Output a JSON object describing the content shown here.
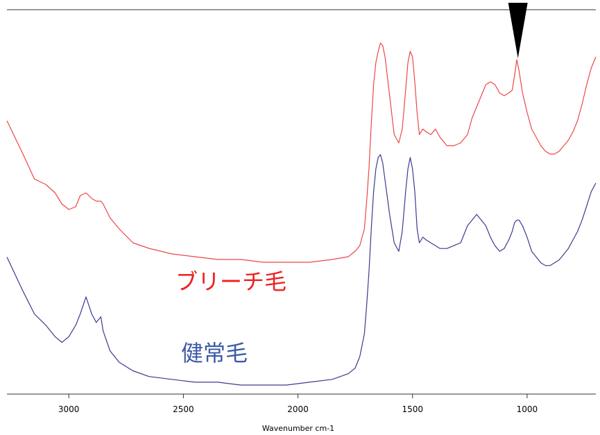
{
  "chart_data": {
    "type": "line",
    "title": "",
    "xlabel": "Wavenumber cm-1",
    "ylabel": "",
    "x_reversed": true,
    "xlim": [
      3270,
      700
    ],
    "ylim": [
      0,
      1
    ],
    "x_ticks": [
      3000,
      2500,
      2000,
      1500,
      1000
    ],
    "grid": false,
    "legend": "inline labels",
    "series": [
      {
        "name": "ブリーチ毛",
        "color": "#ef4545",
        "x": [
          3270,
          3200,
          3150,
          3100,
          3060,
          3030,
          3000,
          2970,
          2950,
          2925,
          2900,
          2880,
          2860,
          2850,
          2820,
          2780,
          2720,
          2650,
          2550,
          2450,
          2350,
          2250,
          2150,
          2050,
          1950,
          1850,
          1780,
          1750,
          1730,
          1710,
          1700,
          1690,
          1680,
          1670,
          1660,
          1650,
          1640,
          1630,
          1620,
          1600,
          1580,
          1560,
          1545,
          1530,
          1520,
          1510,
          1500,
          1490,
          1480,
          1470,
          1455,
          1440,
          1420,
          1400,
          1380,
          1350,
          1320,
          1290,
          1260,
          1240,
          1220,
          1200,
          1180,
          1160,
          1140,
          1120,
          1100,
          1080,
          1065,
          1055,
          1045,
          1035,
          1020,
          1000,
          980,
          960,
          940,
          920,
          900,
          880,
          860,
          840,
          820,
          800,
          780,
          760,
          740,
          720,
          700
        ],
        "values": [
          0.69,
          0.57,
          0.48,
          0.46,
          0.43,
          0.39,
          0.37,
          0.38,
          0.42,
          0.43,
          0.41,
          0.4,
          0.4,
          0.39,
          0.34,
          0.3,
          0.25,
          0.23,
          0.21,
          0.2,
          0.19,
          0.19,
          0.18,
          0.18,
          0.18,
          0.19,
          0.2,
          0.22,
          0.24,
          0.3,
          0.4,
          0.52,
          0.68,
          0.82,
          0.9,
          0.94,
          0.97,
          0.96,
          0.92,
          0.78,
          0.64,
          0.61,
          0.66,
          0.8,
          0.9,
          0.94,
          0.92,
          0.83,
          0.72,
          0.64,
          0.66,
          0.65,
          0.64,
          0.66,
          0.63,
          0.6,
          0.6,
          0.61,
          0.64,
          0.7,
          0.74,
          0.78,
          0.82,
          0.83,
          0.82,
          0.79,
          0.78,
          0.79,
          0.8,
          0.85,
          0.91,
          0.87,
          0.79,
          0.72,
          0.66,
          0.63,
          0.6,
          0.58,
          0.57,
          0.57,
          0.58,
          0.6,
          0.62,
          0.65,
          0.69,
          0.75,
          0.82,
          0.88,
          0.92
        ]
      },
      {
        "name": "健常毛",
        "color": "#3b3a8e",
        "x": [
          3270,
          3200,
          3150,
          3100,
          3060,
          3030,
          3000,
          2970,
          2950,
          2925,
          2900,
          2880,
          2860,
          2850,
          2820,
          2780,
          2720,
          2650,
          2550,
          2450,
          2350,
          2250,
          2150,
          2050,
          1950,
          1850,
          1780,
          1750,
          1730,
          1710,
          1700,
          1690,
          1680,
          1670,
          1660,
          1650,
          1640,
          1630,
          1620,
          1600,
          1580,
          1560,
          1545,
          1530,
          1520,
          1510,
          1500,
          1490,
          1480,
          1470,
          1455,
          1440,
          1420,
          1400,
          1380,
          1350,
          1320,
          1290,
          1260,
          1240,
          1220,
          1200,
          1180,
          1160,
          1140,
          1120,
          1100,
          1080,
          1065,
          1055,
          1045,
          1035,
          1020,
          1000,
          980,
          960,
          940,
          920,
          900,
          880,
          860,
          840,
          820,
          800,
          780,
          760,
          740,
          720,
          700
        ],
        "values": [
          0.45,
          0.33,
          0.25,
          0.21,
          0.17,
          0.15,
          0.17,
          0.21,
          0.25,
          0.31,
          0.25,
          0.22,
          0.24,
          0.19,
          0.12,
          0.08,
          0.05,
          0.03,
          0.02,
          0.01,
          0.01,
          0.0,
          0.0,
          0.0,
          0.01,
          0.02,
          0.04,
          0.06,
          0.1,
          0.18,
          0.28,
          0.4,
          0.55,
          0.68,
          0.76,
          0.8,
          0.81,
          0.78,
          0.72,
          0.6,
          0.5,
          0.47,
          0.54,
          0.68,
          0.76,
          0.8,
          0.76,
          0.68,
          0.55,
          0.5,
          0.52,
          0.51,
          0.5,
          0.49,
          0.48,
          0.48,
          0.49,
          0.5,
          0.56,
          0.58,
          0.6,
          0.58,
          0.56,
          0.52,
          0.49,
          0.47,
          0.48,
          0.51,
          0.54,
          0.57,
          0.58,
          0.58,
          0.56,
          0.52,
          0.47,
          0.45,
          0.43,
          0.42,
          0.42,
          0.43,
          0.44,
          0.46,
          0.48,
          0.51,
          0.54,
          0.58,
          0.63,
          0.68,
          0.71
        ]
      }
    ],
    "annotations": [
      {
        "type": "arrow-marker",
        "x": 1040,
        "color": "#000000"
      }
    ]
  }
}
